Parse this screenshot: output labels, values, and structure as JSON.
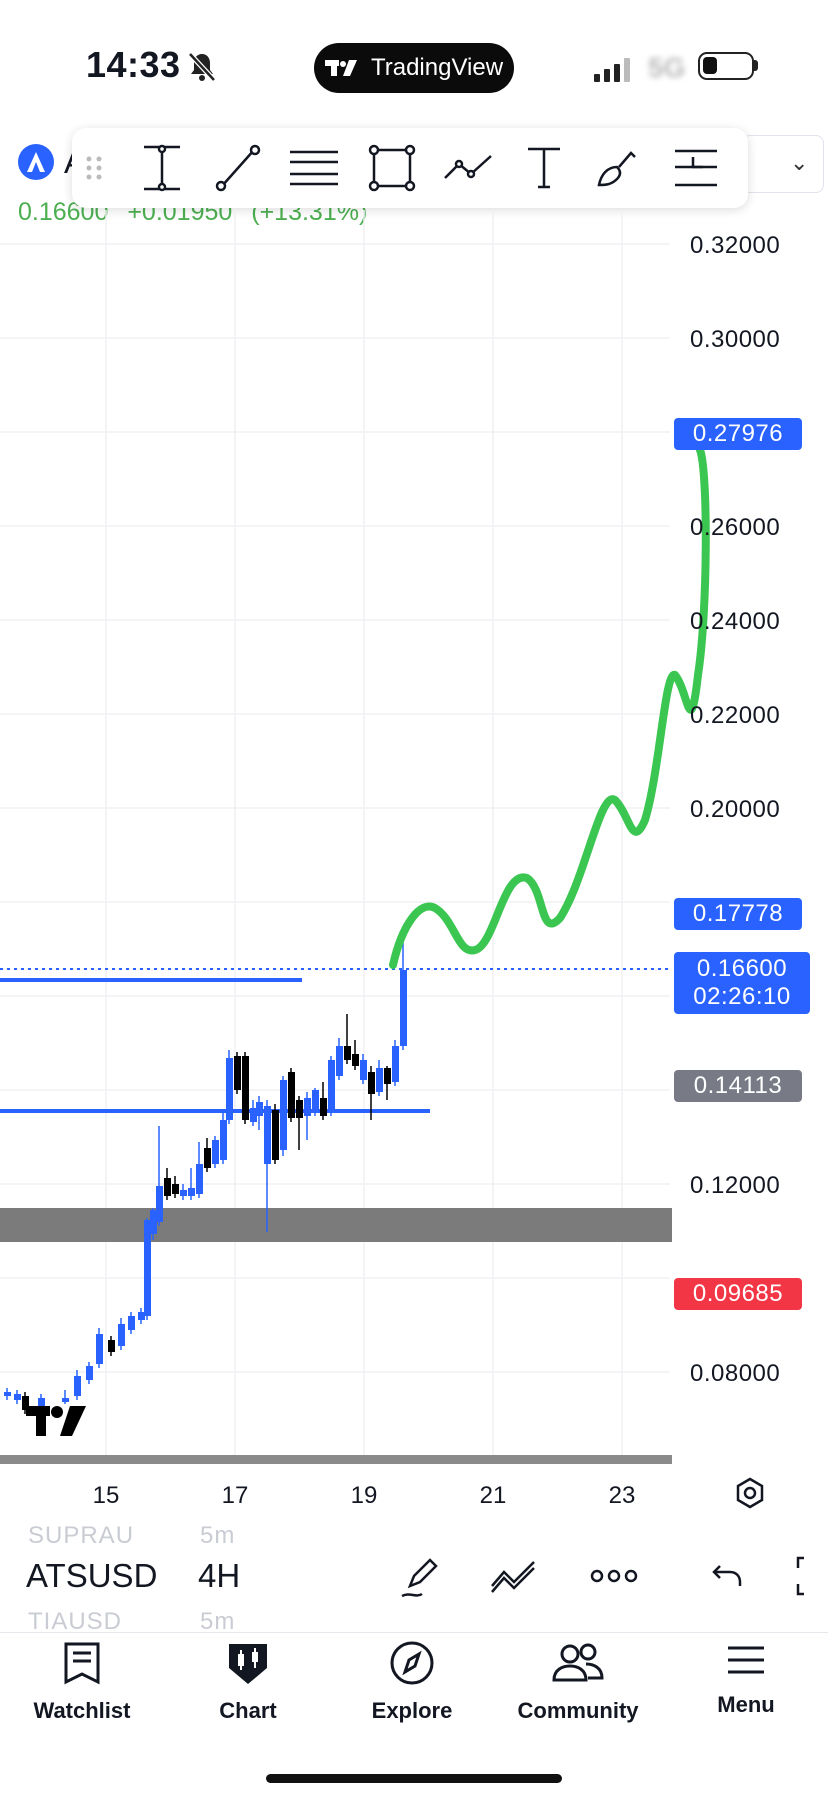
{
  "status_bar": {
    "time": "14:33",
    "network": "5G",
    "app_pill": "TradingView"
  },
  "header": {
    "symbol_letter": "A",
    "last_price": "0.16600",
    "change": "+0.01950",
    "change_pct": "(+13.31%)",
    "price_color": "#4caf50"
  },
  "drawing_toolbar": {
    "tools": [
      "drag-handle-icon",
      "measure-tool-icon",
      "trend-line-icon",
      "horizontal-lines-icon",
      "rectangle-icon",
      "path-icon",
      "text-tool-icon",
      "brush-icon",
      "long-position-icon"
    ]
  },
  "chart": {
    "y_axis_labels": [
      "0.32000",
      "0.30000",
      "0.26000",
      "0.24000",
      "0.22000",
      "0.20000",
      "0.12000",
      "0.08000"
    ],
    "x_axis_labels": [
      "15",
      "17",
      "19",
      "21",
      "23"
    ],
    "tags": [
      {
        "text": "0.27976",
        "color": "#2962ff"
      },
      {
        "text": "0.17778",
        "color": "#2962ff"
      },
      {
        "text": "0.16600",
        "sub": "02:26:10",
        "color": "#2962ff"
      },
      {
        "text": "0.14113",
        "color": "#787b86"
      },
      {
        "text": "0.09685",
        "color": "#f23645"
      }
    ],
    "accent": "#2962ff",
    "drawing_color": "#3ac650"
  },
  "symbol_bar": {
    "ghost_above_symbol": "SUPRAU",
    "ghost_above_tf": "5m",
    "symbol": "ATSUSD",
    "timeframe": "4H",
    "ghost_below_symbol": "TIAUSD",
    "ghost_below_tf": "5m"
  },
  "tabs": [
    {
      "label": "Watchlist",
      "icon": "watchlist-icon"
    },
    {
      "label": "Chart",
      "icon": "chart-icon"
    },
    {
      "label": "Explore",
      "icon": "compass-icon"
    },
    {
      "label": "Community",
      "icon": "community-icon"
    },
    {
      "label": "Menu",
      "icon": "menu-icon"
    }
  ]
}
